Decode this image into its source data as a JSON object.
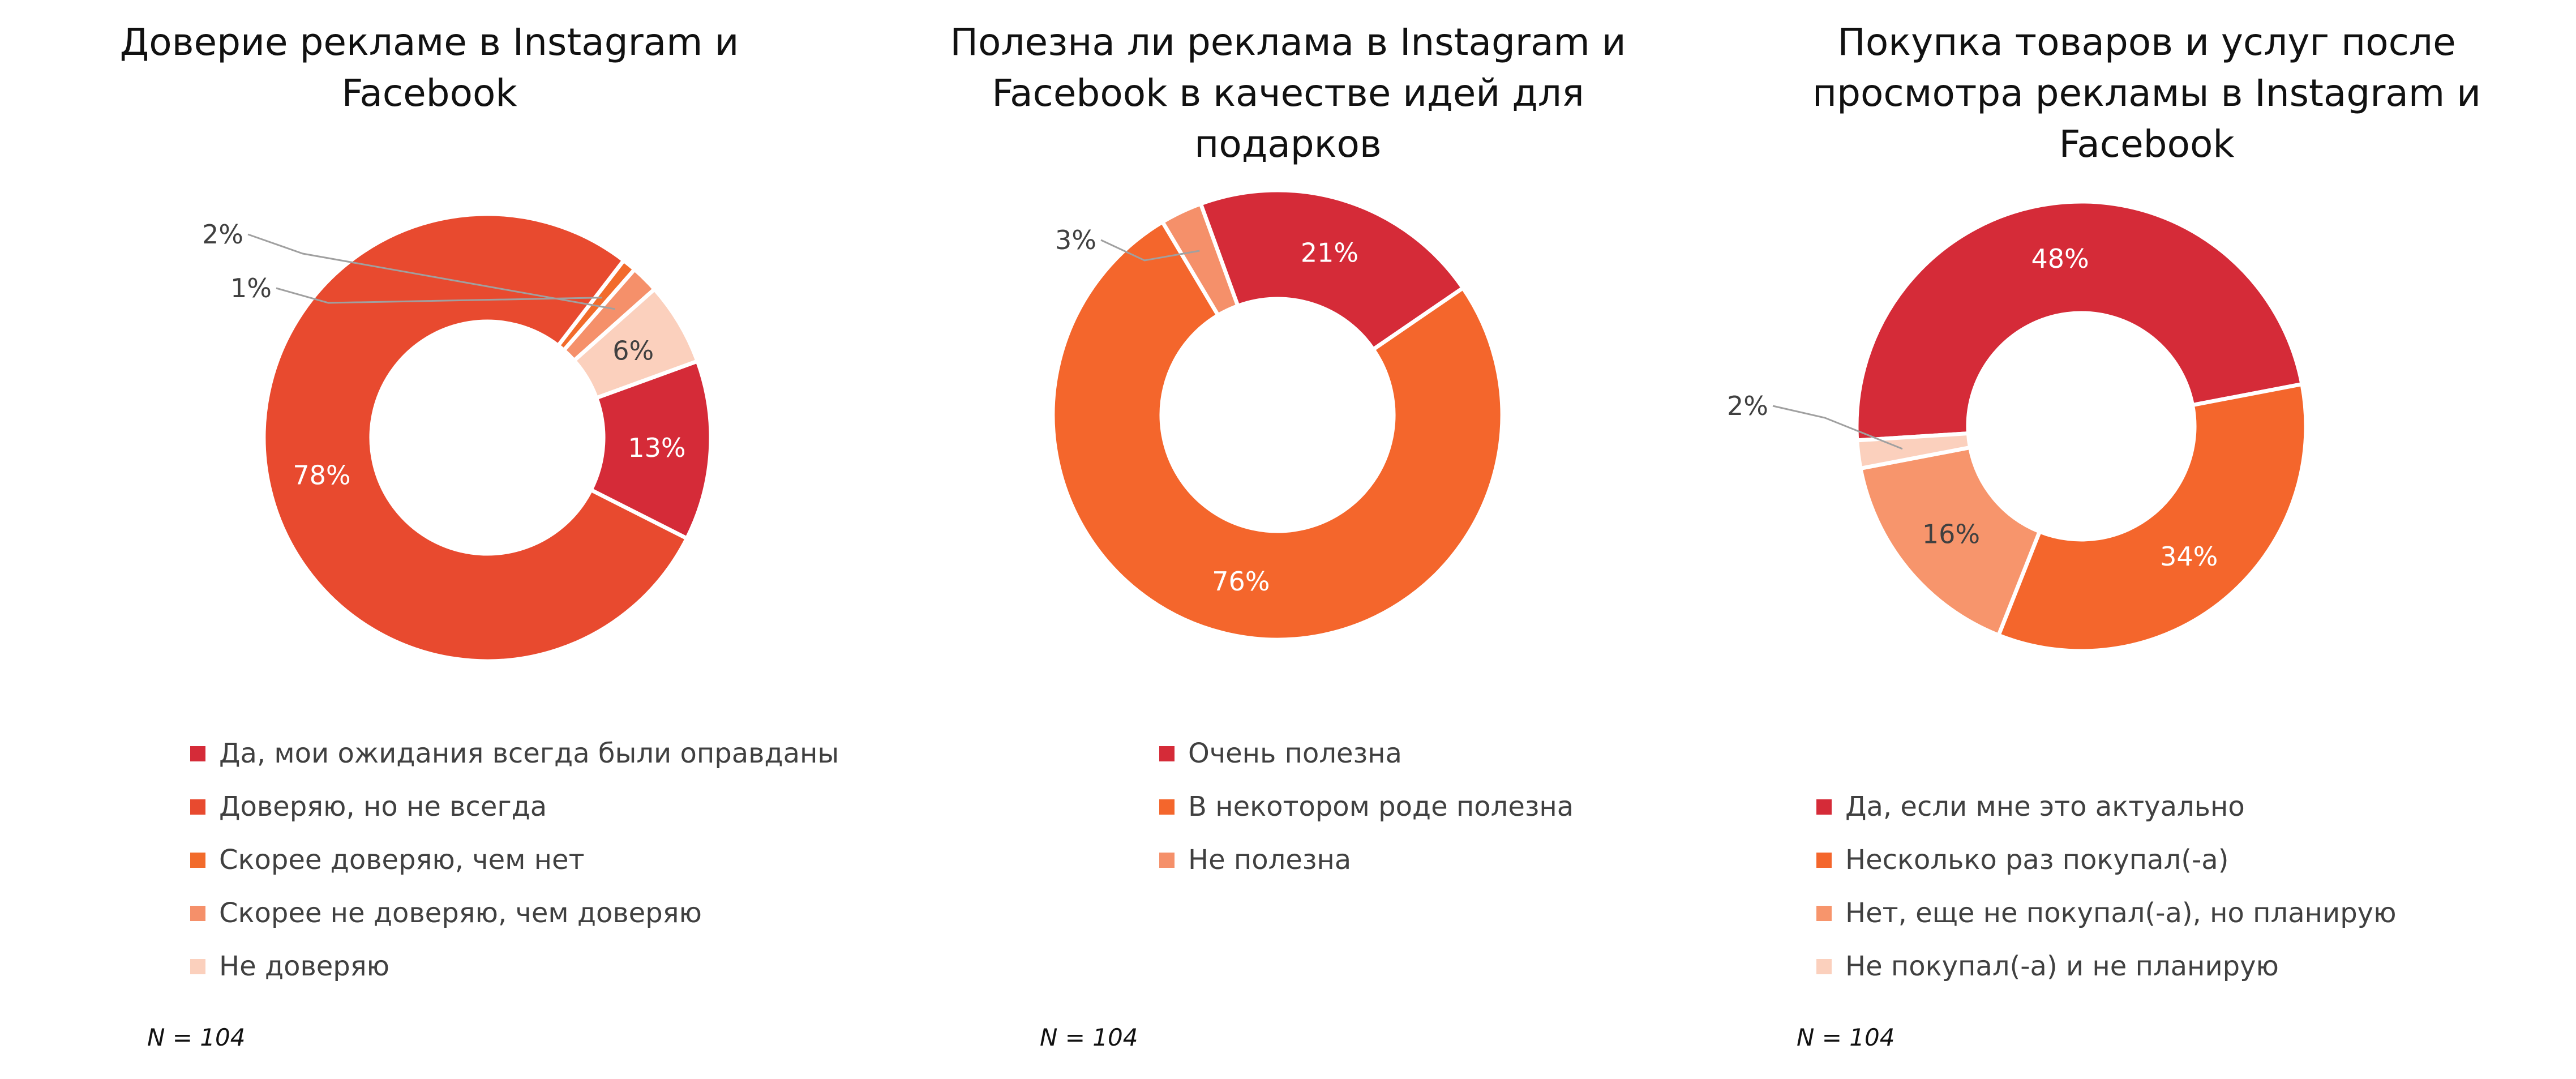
{
  "chart_data": [
    {
      "type": "pie",
      "style": "donut",
      "title": "Доверие рекламе в Instagram и Facebook",
      "title_lines": [
        "Доверие рекламе в Instagram и",
        "Facebook"
      ],
      "categories": [
        "Да, мои ожидания всегда были оправданы",
        "Доверяю, но не всегда",
        "Скорее доверяю, чем нет",
        "Скорее не доверяю, чем доверяю",
        "Не доверяю"
      ],
      "values": [
        13,
        78,
        1,
        2,
        6
      ],
      "data_labels": [
        "13%",
        "78%",
        "1%",
        "2%",
        "6%"
      ],
      "colors": [
        "#d52b38",
        "#e84a2f",
        "#f26b2b",
        "#f5906a",
        "#fbd0bd"
      ],
      "legend_position": "bottom",
      "note": "N = 104"
    },
    {
      "type": "pie",
      "style": "donut",
      "title": "Полезна ли реклама в Instagram и Facebook в качестве идей для подарков",
      "title_lines": [
        "Полезна ли реклама в Instagram и",
        "Facebook в качестве идей для",
        "подарков"
      ],
      "categories": [
        "Очень полезна",
        "В некотором роде полезна",
        "Не полезна"
      ],
      "values": [
        21,
        76,
        3
      ],
      "data_labels": [
        "21%",
        "76%",
        "3%"
      ],
      "colors": [
        "#d52b38",
        "#f4662c",
        "#f5906a"
      ],
      "legend_position": "bottom",
      "note": "N = 104"
    },
    {
      "type": "pie",
      "style": "donut",
      "title": "Покупка товаров и услуг после просмотра рекламы в Instagram и Facebook",
      "title_lines": [
        "Покупка товаров и услуг после",
        "просмотра рекламы в Instagram и",
        "Facebook"
      ],
      "categories": [
        "Да, если мне это актуально",
        "Несколько раз покупал(-а)",
        "Нет, еще не покупал(-а), но планирую",
        "Не покупал(-а) и не планирую"
      ],
      "values": [
        48,
        34,
        16,
        2
      ],
      "data_labels": [
        "48%",
        "34%",
        "16%",
        "2%"
      ],
      "colors": [
        "#d52b38",
        "#f4662c",
        "#f7956c",
        "#fbd0bd"
      ],
      "legend_position": "bottom",
      "note": "N = 104"
    }
  ]
}
